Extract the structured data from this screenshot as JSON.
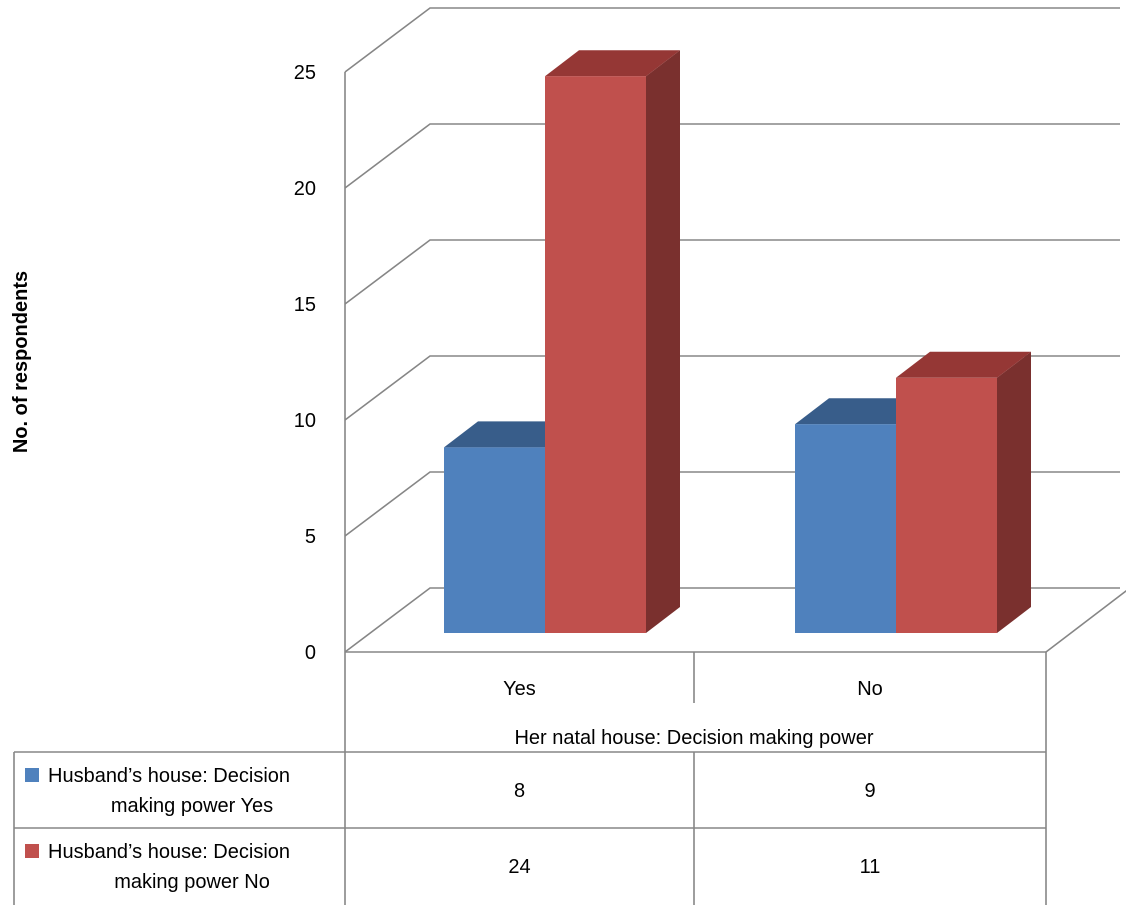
{
  "chart_data": {
    "type": "bar",
    "style": "3d-clustered-column",
    "ylabel": "No. of respondents",
    "xlabel": "Her natal house: Decision making power",
    "categories": [
      "Yes",
      "No"
    ],
    "ylim": [
      0,
      25
    ],
    "yticks": [
      "0",
      "5",
      "10",
      "15",
      "20",
      "25"
    ],
    "grid": true,
    "legend": "data-table",
    "series": [
      {
        "name": "Husband’s house: Decision making power Yes",
        "name_lines": [
          "Husband’s house: Decision",
          "making power Yes"
        ],
        "values": [
          8,
          9
        ],
        "color": "#4f81bd"
      },
      {
        "name": "Husband’s house: Decision making power No",
        "name_lines": [
          "Husband’s house: Decision",
          "making power No"
        ],
        "values": [
          24,
          11
        ],
        "color": "#c0504d"
      }
    ],
    "table": [
      [
        "8",
        "9"
      ],
      [
        "24",
        "11"
      ]
    ]
  }
}
